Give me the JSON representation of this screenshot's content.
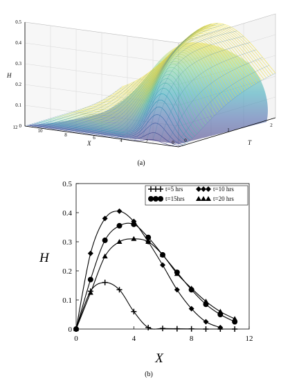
{
  "panel_a": {
    "caption": "(a)",
    "zlabel": "H",
    "xlabel": "X",
    "tlabel": "T",
    "z_ticks": [
      "0",
      "0.1",
      "0.2",
      "0.3",
      "0.4",
      "0.5"
    ],
    "x_ticks": [
      "12",
      "10",
      "8",
      "6",
      "4",
      "2",
      "0"
    ],
    "t_ticks": [
      "0",
      "1",
      "2"
    ],
    "colormap": [
      "#3b2d7a",
      "#3f5fa8",
      "#2fa4b8",
      "#7fd3a0",
      "#f2e24a"
    ]
  },
  "panel_b": {
    "caption": "(b)",
    "xlabel": "X",
    "ylabel": "H",
    "x_ticks": [
      "0",
      "4",
      "8",
      "12"
    ],
    "y_ticks": [
      "0",
      "0.1",
      "0.2",
      "0.3",
      "0.4",
      "0.5"
    ]
  },
  "chart_data": [
    {
      "type": "surface",
      "xlabel": "X",
      "ylabel": "T",
      "zlabel": "H",
      "xlim": [
        0,
        12
      ],
      "ylim": [
        0,
        2
      ],
      "zlim": [
        0,
        0.5
      ],
      "grid": true,
      "colormap": [
        "#3b2d7a",
        "#3f5fa8",
        "#2fa4b8",
        "#7fd3a0",
        "#f2e24a"
      ]
    },
    {
      "type": "line",
      "xlabel": "X",
      "ylabel": "H",
      "xlim": [
        0,
        12
      ],
      "ylim": [
        0,
        0.5
      ],
      "grid": false,
      "legend_position": "top-right",
      "series": [
        {
          "name": "t=5 hrs",
          "marker": "plus",
          "x": [
            0,
            1,
            2,
            3,
            4,
            5,
            6,
            7,
            8,
            9,
            10,
            11
          ],
          "y": [
            0,
            0.13,
            0.16,
            0.135,
            0.06,
            0.005,
            0.002,
            0.001,
            0.0005,
            0,
            0,
            0
          ]
        },
        {
          "name": "t=10 hrs",
          "marker": "diamond",
          "x": [
            0,
            1,
            2,
            3,
            4,
            5,
            6,
            7,
            8,
            9,
            10
          ],
          "y": [
            0,
            0.26,
            0.38,
            0.405,
            0.37,
            0.3,
            0.22,
            0.135,
            0.07,
            0.025,
            0.005
          ]
        },
        {
          "name": "t=15hrs",
          "marker": "circle",
          "x": [
            0,
            1,
            2,
            3,
            4,
            5,
            6,
            7,
            8,
            9,
            10,
            11
          ],
          "y": [
            0,
            0.17,
            0.305,
            0.355,
            0.36,
            0.315,
            0.255,
            0.195,
            0.135,
            0.085,
            0.05,
            0.025
          ]
        },
        {
          "name": "t=20 hrs",
          "marker": "triangle",
          "x": [
            0,
            1,
            2,
            3,
            4,
            5,
            6,
            7,
            8,
            9,
            10,
            11
          ],
          "y": [
            0,
            0.125,
            0.25,
            0.3,
            0.31,
            0.3,
            0.255,
            0.19,
            0.14,
            0.095,
            0.06,
            0.035
          ]
        }
      ]
    }
  ]
}
